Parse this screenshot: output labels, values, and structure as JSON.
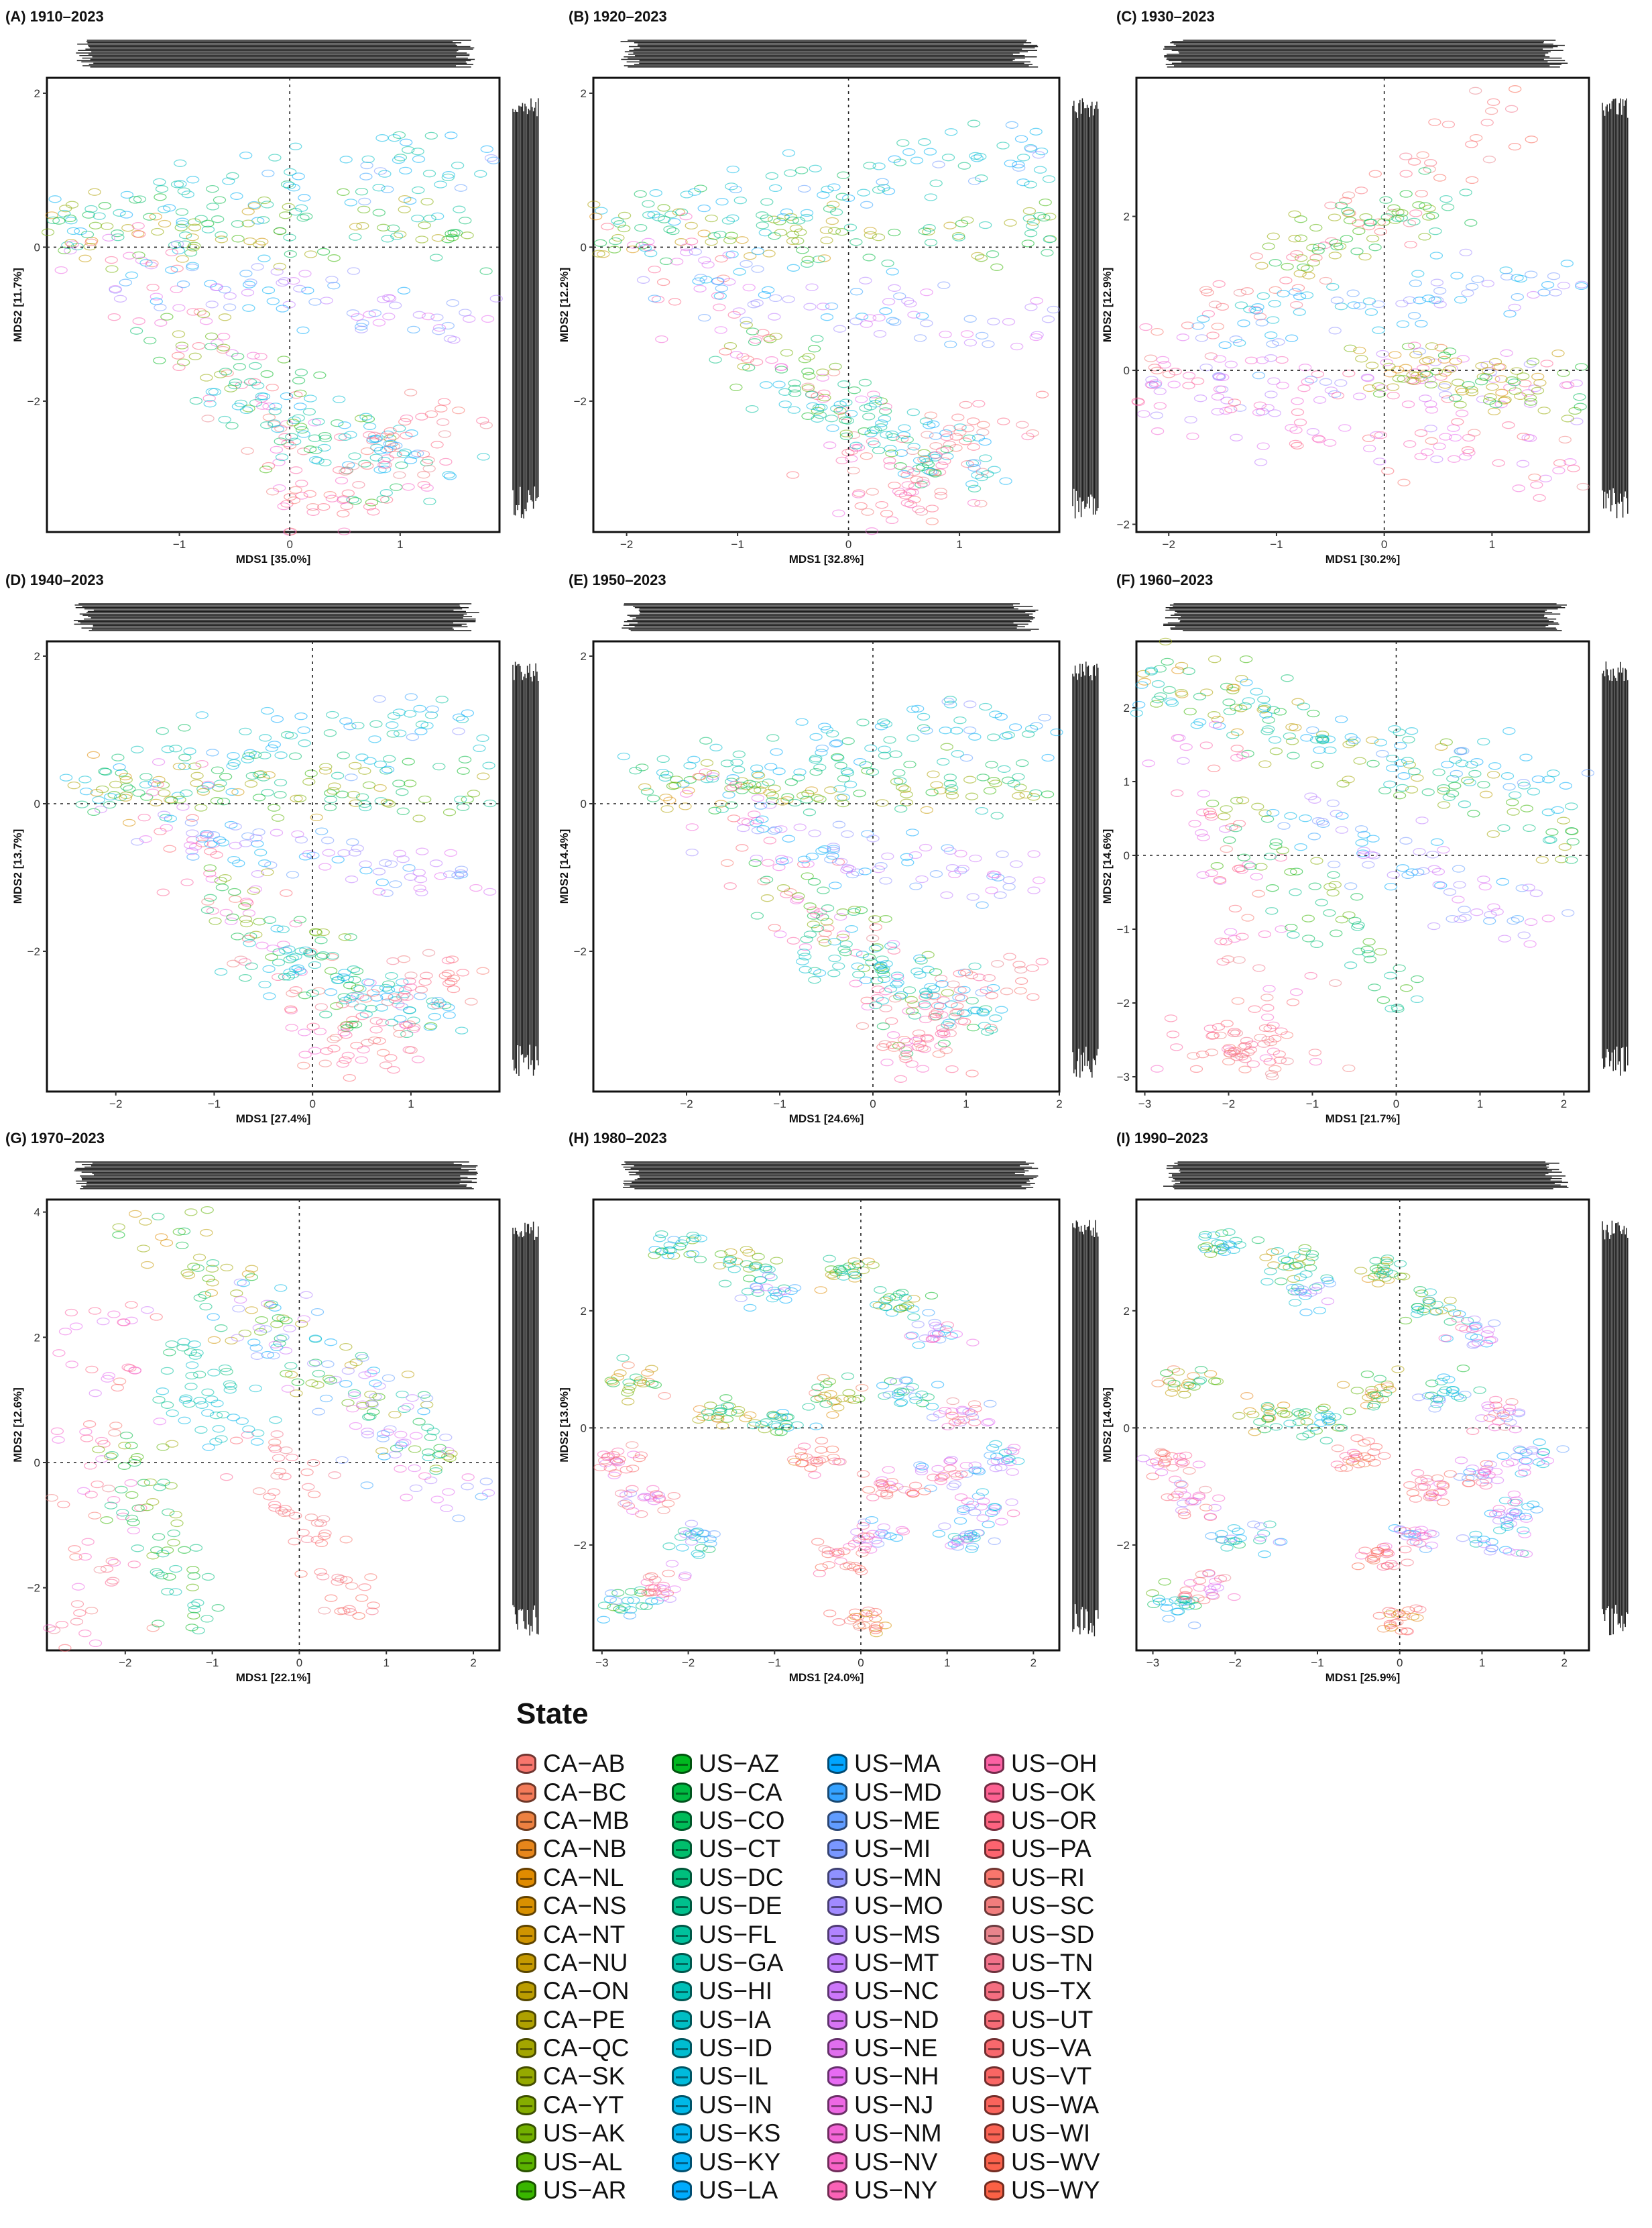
{
  "chart_data": [
    {
      "type": "scatter",
      "panel": "A",
      "title": "(A) 1910–2023",
      "xlabel": "MDS1 [35.0%]",
      "ylabel": "MDS2 [11.7%]",
      "xlim": [
        -2.2,
        1.9
      ],
      "ylim": [
        -3.7,
        2.2
      ],
      "xticks": [
        -1,
        0,
        1
      ],
      "yticks": [
        -2,
        0,
        2
      ],
      "cloud": "inverted-triangle",
      "marginals": {
        "top": true,
        "right": true
      }
    },
    {
      "type": "scatter",
      "panel": "B",
      "title": "(B) 1920–2023",
      "xlabel": "MDS1 [32.8%]",
      "ylabel": "MDS2 [12.2%]",
      "xlim": [
        -2.3,
        1.9
      ],
      "ylim": [
        -3.7,
        2.2
      ],
      "xticks": [
        -2,
        -1,
        0,
        1
      ],
      "yticks": [
        -2,
        0,
        2
      ],
      "cloud": "inverted-triangle",
      "marginals": {
        "top": true,
        "right": true
      }
    },
    {
      "type": "scatter",
      "panel": "C",
      "title": "(C) 1930–2023",
      "xlabel": "MDS1 [30.2%]",
      "ylabel": "MDS2 [12.9%]",
      "xlim": [
        -2.3,
        1.9
      ],
      "ylim": [
        -2.1,
        3.8
      ],
      "xticks": [
        -2,
        -1,
        0,
        1
      ],
      "yticks": [
        -2,
        0,
        2
      ],
      "cloud": "upright-triangle",
      "marginals": {
        "top": true,
        "right": true
      }
    },
    {
      "type": "scatter",
      "panel": "D",
      "title": "(D) 1940–2023",
      "xlabel": "MDS1 [27.4%]",
      "ylabel": "MDS2 [13.7%]",
      "xlim": [
        -2.7,
        1.9
      ],
      "ylim": [
        -3.9,
        2.2
      ],
      "xticks": [
        -2,
        -1,
        0,
        1
      ],
      "yticks": [
        -2,
        0,
        2
      ],
      "cloud": "inverted-triangle",
      "marginals": {
        "top": true,
        "right": true
      }
    },
    {
      "type": "scatter",
      "panel": "E",
      "title": "(E) 1950–2023",
      "xlabel": "MDS1 [24.6%]",
      "ylabel": "MDS2 [14.4%]",
      "xlim": [
        -3.0,
        2.0
      ],
      "ylim": [
        -3.9,
        2.2
      ],
      "xticks": [
        -2,
        -1,
        0,
        1,
        2
      ],
      "yticks": [
        -2,
        0,
        2
      ],
      "cloud": "inverted-triangle",
      "marginals": {
        "top": true,
        "right": true
      }
    },
    {
      "type": "scatter",
      "panel": "F",
      "title": "(F) 1960–2023",
      "xlabel": "MDS1 [21.7%]",
      "ylabel": "MDS2 [14.6%]",
      "xlim": [
        -3.1,
        2.3
      ],
      "ylim": [
        -3.2,
        2.9
      ],
      "xticks": [
        -3,
        -2,
        -1,
        0,
        1,
        2
      ],
      "yticks": [
        -3,
        -2,
        -1,
        0,
        1,
        2
      ],
      "cloud": "wedge",
      "marginals": {
        "top": true,
        "right": true
      }
    },
    {
      "type": "scatter",
      "panel": "G",
      "title": "(G) 1970–2023",
      "xlabel": "MDS1 [22.1%]",
      "ylabel": "MDS2 [12.6%]",
      "xlim": [
        -2.9,
        2.3
      ],
      "ylim": [
        -3.0,
        4.2
      ],
      "xticks": [
        -2,
        -1,
        0,
        1,
        2
      ],
      "yticks": [
        -2,
        0,
        2,
        4
      ],
      "cloud": "arch",
      "marginals": {
        "top": true,
        "right": true
      }
    },
    {
      "type": "scatter",
      "panel": "H",
      "title": "(H) 1980–2023",
      "xlabel": "MDS1 [24.0%]",
      "ylabel": "MDS2 [13.0%]",
      "xlim": [
        -3.1,
        2.3
      ],
      "ylim": [
        -3.8,
        3.9
      ],
      "xticks": [
        -3,
        -2,
        -1,
        0,
        1,
        2
      ],
      "yticks": [
        -2,
        0,
        2
      ],
      "cloud": "clusters",
      "marginals": {
        "top": true,
        "right": true
      }
    },
    {
      "type": "scatter",
      "panel": "I",
      "title": "(I) 1990–2023",
      "xlabel": "MDS1 [25.9%]",
      "ylabel": "MDS2 [14.0%]",
      "xlim": [
        -3.2,
        2.3
      ],
      "ylim": [
        -3.8,
        3.9
      ],
      "xticks": [
        -3,
        -2,
        -1,
        0,
        1,
        2
      ],
      "yticks": [
        -2,
        0,
        2
      ],
      "cloud": "clusters",
      "marginals": {
        "top": true,
        "right": true
      }
    }
  ],
  "legend": {
    "title": "State",
    "items": [
      {
        "label": "CA−AB",
        "color": "#F8766D"
      },
      {
        "label": "CA−BC",
        "color": "#F37B59"
      },
      {
        "label": "CA−MB",
        "color": "#ED8141"
      },
      {
        "label": "CA−NB",
        "color": "#E7861B"
      },
      {
        "label": "CA−NL",
        "color": "#E08B00"
      },
      {
        "label": "CA−NS",
        "color": "#D89000"
      },
      {
        "label": "CA−NT",
        "color": "#CF9400"
      },
      {
        "label": "CA−NU",
        "color": "#C59900"
      },
      {
        "label": "CA−ON",
        "color": "#BB9D00"
      },
      {
        "label": "CA−PE",
        "color": "#AFA100"
      },
      {
        "label": "CA−QC",
        "color": "#A3A500"
      },
      {
        "label": "CA−SK",
        "color": "#95A900"
      },
      {
        "label": "CA−YT",
        "color": "#85AD00"
      },
      {
        "label": "US−AK",
        "color": "#72B000"
      },
      {
        "label": "US−AL",
        "color": "#5BB300"
      },
      {
        "label": "US−AR",
        "color": "#39B600"
      },
      {
        "label": "US−AZ",
        "color": "#00B81F"
      },
      {
        "label": "US−CA",
        "color": "#00BA42"
      },
      {
        "label": "US−CO",
        "color": "#00BC59"
      },
      {
        "label": "US−CT",
        "color": "#00BE6C"
      },
      {
        "label": "US−DC",
        "color": "#00BF7D"
      },
      {
        "label": "US−DE",
        "color": "#00C08D"
      },
      {
        "label": "US−FL",
        "color": "#00C19C"
      },
      {
        "label": "US−GA",
        "color": "#00C1AA"
      },
      {
        "label": "US−HI",
        "color": "#00C0B8"
      },
      {
        "label": "US−IA",
        "color": "#00BFC4"
      },
      {
        "label": "US−ID",
        "color": "#00BDD0"
      },
      {
        "label": "US−IL",
        "color": "#00BBDC"
      },
      {
        "label": "US−IN",
        "color": "#00B8E7"
      },
      {
        "label": "US−KS",
        "color": "#00B4F0"
      },
      {
        "label": "US−KY",
        "color": "#00B0F6"
      },
      {
        "label": "US−LA",
        "color": "#00ABFD"
      },
      {
        "label": "US−MA",
        "color": "#00A5FF"
      },
      {
        "label": "US−MD",
        "color": "#35A2FF"
      },
      {
        "label": "US−ME",
        "color": "#619CFF"
      },
      {
        "label": "US−MI",
        "color": "#7997FF"
      },
      {
        "label": "US−MN",
        "color": "#8F91FF"
      },
      {
        "label": "US−MO",
        "color": "#A18AFF"
      },
      {
        "label": "US−MS",
        "color": "#B283FF"
      },
      {
        "label": "US−MT",
        "color": "#C07BFF"
      },
      {
        "label": "US−NC",
        "color": "#CC77FA"
      },
      {
        "label": "US−ND",
        "color": "#D673F5"
      },
      {
        "label": "US−NE",
        "color": "#E06EEE"
      },
      {
        "label": "US−NH",
        "color": "#E76BF3"
      },
      {
        "label": "US−NJ",
        "color": "#ED68E4"
      },
      {
        "label": "US−NM",
        "color": "#F365D6"
      },
      {
        "label": "US−NV",
        "color": "#F763C7"
      },
      {
        "label": "US−NY",
        "color": "#FA62B6"
      },
      {
        "label": "US−OH",
        "color": "#FC61A4"
      },
      {
        "label": "US−OK",
        "color": "#FD6192"
      },
      {
        "label": "US−OR",
        "color": "#FD6380"
      },
      {
        "label": "US−PA",
        "color": "#FB646F"
      },
      {
        "label": "US−RI",
        "color": "#F8766D"
      },
      {
        "label": "US−SC",
        "color": "#F07D7D"
      },
      {
        "label": "US−SD",
        "color": "#E8848C"
      },
      {
        "label": "US−TN",
        "color": "#F2728A"
      },
      {
        "label": "US−TX",
        "color": "#F56E80"
      },
      {
        "label": "US−UT",
        "color": "#F76B76"
      },
      {
        "label": "US−VA",
        "color": "#F8686D"
      },
      {
        "label": "US−VT",
        "color": "#F96664"
      },
      {
        "label": "US−WA",
        "color": "#FA645C"
      },
      {
        "label": "US−WI",
        "color": "#FA6354"
      },
      {
        "label": "US−WV",
        "color": "#FA624C"
      },
      {
        "label": "US−WY",
        "color": "#FA6145"
      }
    ]
  }
}
